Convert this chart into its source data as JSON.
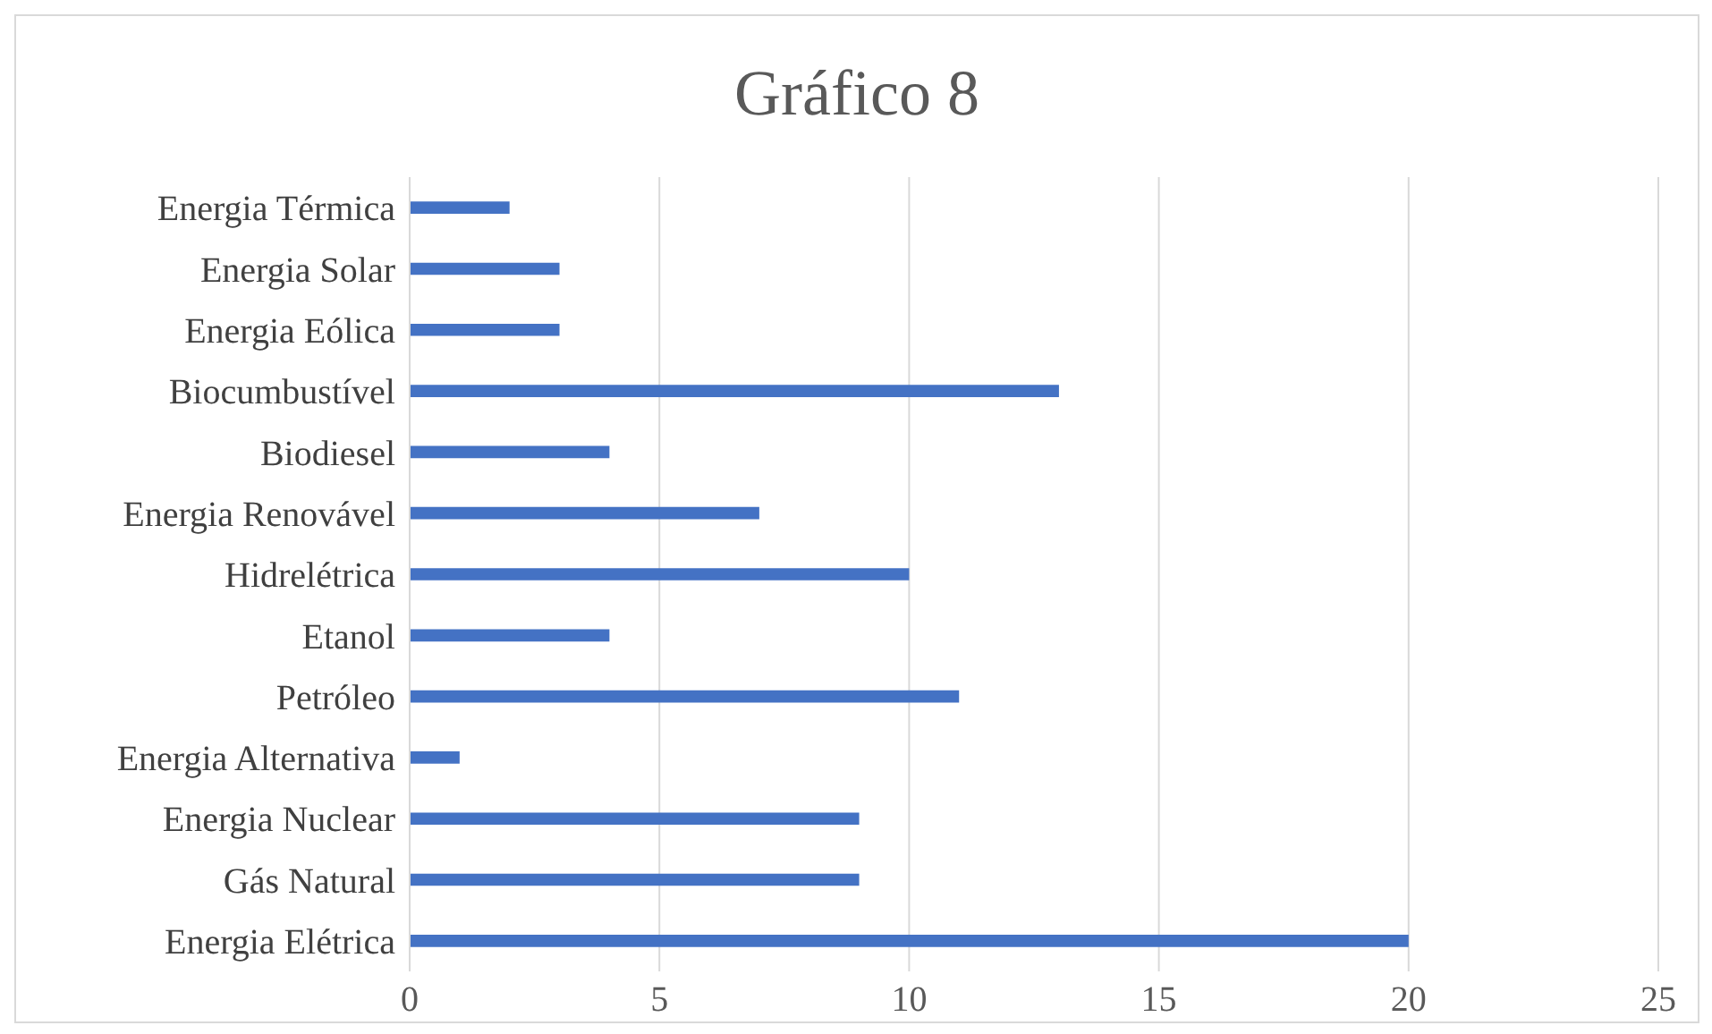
{
  "chart_data": {
    "type": "bar",
    "orientation": "horizontal",
    "title": "Gráfico 8",
    "categories": [
      "Energia Térmica",
      "Energia Solar",
      "Energia Eólica",
      "Biocumbustível",
      "Biodiesel",
      "Energia Renovável",
      "Hidrelétrica",
      "Etanol",
      "Petróleo",
      "Energia Alternativa",
      "Energia Nuclear",
      "Gás Natural",
      "Energia Elétrica"
    ],
    "values": [
      2,
      3,
      3,
      13,
      4,
      7,
      10,
      4,
      11,
      1,
      9,
      9,
      20
    ],
    "color": "#4472c4",
    "xlim": [
      0,
      25
    ],
    "xticks": [
      0,
      5,
      10,
      15,
      20,
      25
    ],
    "grid": "x"
  }
}
